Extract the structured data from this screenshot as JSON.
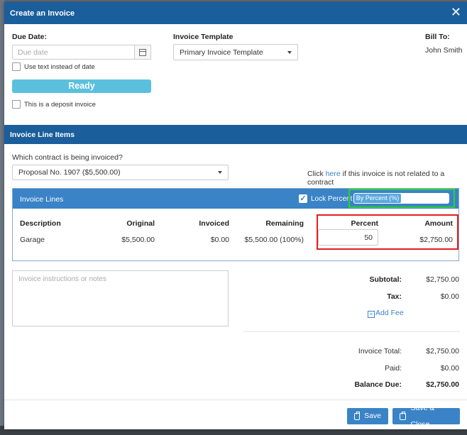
{
  "modal": {
    "title": "Create an Invoice",
    "close_glyph": "✕"
  },
  "form": {
    "due_date_label": "Due Date:",
    "due_date_placeholder": "Due date",
    "use_text_label": "Use text instead of date",
    "ready_label": "Ready",
    "deposit_label": "This is a deposit invoice",
    "template_label": "Invoice Template",
    "template_value": "Primary Invoice Template",
    "bill_to_label": "Bill To:",
    "bill_to_value": "John Smith"
  },
  "line_items": {
    "section_title": "Invoice Line Items",
    "contract_question": "Which contract is being invoiced?",
    "contract_value": "Proposal No. 1907 ($5,500.00)",
    "click_prefix": "Click",
    "click_link": "here",
    "click_suffix": "if this invoice is not related to a contract"
  },
  "invoice_lines": {
    "title": "Invoice Lines",
    "lock_percent_label": "Lock Percent",
    "lock_percent_checked": true,
    "mode_label": "By Percent (%)",
    "columns": {
      "description": "Description",
      "original": "Original",
      "invoiced": "Invoiced",
      "remaining": "Remaining",
      "percent": "Percent",
      "amount": "Amount"
    },
    "rows": [
      {
        "description": "Garage",
        "original": "$5,500.00",
        "invoiced": "$0.00",
        "remaining": "$5,500.00 (100%)",
        "percent": "50",
        "amount": "$2,750.00"
      }
    ]
  },
  "notes_placeholder": "Invoice instructions or notes",
  "totals": {
    "subtotal_label": "Subtotal:",
    "subtotal_value": "$2,750.00",
    "tax_label": "Tax:",
    "tax_value": "$0.00",
    "add_fee_label": "Add Fee",
    "invoice_total_label": "Invoice Total:",
    "invoice_total_value": "$2,750.00",
    "paid_label": "Paid:",
    "paid_value": "$0.00",
    "balance_due_label": "Balance Due:",
    "balance_due_value": "$2,750.00"
  },
  "actions": {
    "save_label": "Save",
    "save_close_label": "Save & Close"
  },
  "colors": {
    "header": "#1a5e9c",
    "panel_head": "#3a83c6",
    "ready": "#5bc0de",
    "highlight_green": "#2fd12f",
    "highlight_red": "#e02020"
  }
}
